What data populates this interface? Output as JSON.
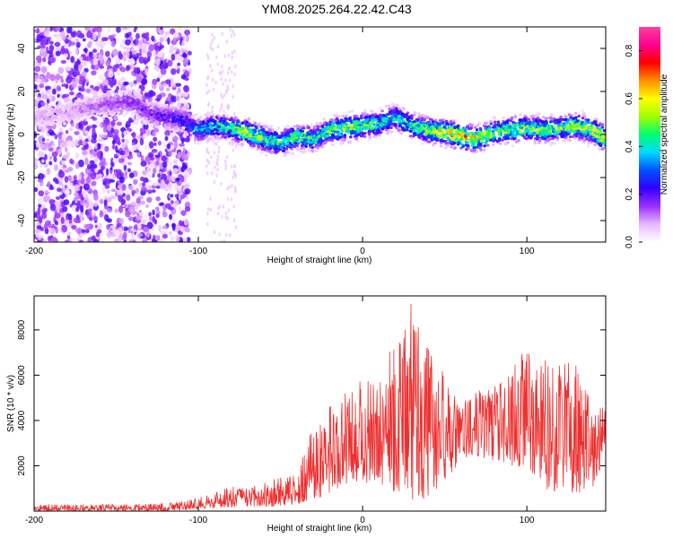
{
  "title": "YM08.2025.264.22.42.C43",
  "chart_data": [
    {
      "type": "heatmap",
      "name": "spectrogram",
      "xlabel": "Height of straight line (km)",
      "ylabel": "Frequency (Hz)",
      "xlim": [
        -200,
        148
      ],
      "ylim": [
        -50,
        50
      ],
      "xticks": [
        -200,
        -100,
        0,
        100
      ],
      "yticks": [
        -40,
        -20,
        0,
        20,
        40
      ],
      "colorbar": {
        "label": "Normalized spectral amplitude",
        "range": [
          0,
          0.9
        ],
        "ticks": [
          "0.0",
          "0.2",
          "0.4",
          "0.6",
          "0.8"
        ],
        "colors": [
          "#ffffff",
          "#e8b8ff",
          "#9b30ff",
          "#3300ff",
          "#0050ff",
          "#00d8ff",
          "#00ff70",
          "#a0ff00",
          "#ffff00",
          "#ff9000",
          "#ff0000",
          "#ff0090",
          "#ff40a0"
        ]
      },
      "ridge": {
        "x": [
          -200,
          -180,
          -160,
          -140,
          -130,
          -120,
          -110,
          -105,
          -100,
          -90,
          -80,
          -70,
          -60,
          -50,
          -40,
          -30,
          -20,
          -10,
          0,
          10,
          20,
          30,
          40,
          50,
          60,
          70,
          80,
          90,
          100,
          110,
          120,
          130,
          140,
          148
        ],
        "freq": [
          8,
          10,
          14,
          15,
          10,
          8,
          7,
          4,
          2,
          4,
          3,
          1,
          -2,
          -4,
          -1,
          -2,
          2,
          3,
          4,
          5,
          8,
          4,
          2,
          1,
          -1,
          -2,
          1,
          2,
          3,
          2,
          3,
          4,
          2,
          -2
        ],
        "amp": [
          0.1,
          0.1,
          0.15,
          0.2,
          0.2,
          0.25,
          0.3,
          0.35,
          0.4,
          0.45,
          0.5,
          0.65,
          0.55,
          0.5,
          0.55,
          0.5,
          0.55,
          0.6,
          0.55,
          0.5,
          0.45,
          0.5,
          0.6,
          0.7,
          0.8,
          0.65,
          0.55,
          0.6,
          0.6,
          0.55,
          0.55,
          0.6,
          0.65,
          0.7
        ]
      }
    },
    {
      "type": "line",
      "name": "snr",
      "xlabel": "Height of straight line (km)",
      "ylabel": "SNR (10 * v/v)",
      "xlim": [
        -200,
        148
      ],
      "ylim": [
        0,
        9500
      ],
      "xticks": [
        -200,
        -100,
        0,
        100
      ],
      "yticks": [
        2000,
        4000,
        6000,
        8000
      ],
      "color": "#ee3030",
      "envelope": {
        "x": [
          -200,
          -150,
          -120,
          -100,
          -90,
          -80,
          -70,
          -60,
          -50,
          -40,
          -30,
          -20,
          -10,
          0,
          10,
          20,
          25,
          30,
          35,
          40,
          50,
          60,
          70,
          80,
          90,
          100,
          110,
          120,
          130,
          140,
          148
        ],
        "base": [
          0,
          0,
          0,
          100,
          150,
          150,
          200,
          200,
          200,
          300,
          400,
          800,
          1200,
          1300,
          1000,
          800,
          600,
          500,
          400,
          600,
          1200,
          2300,
          2400,
          2200,
          2000,
          1800,
          1000,
          800,
          600,
          1000,
          2500
        ],
        "top": [
          300,
          300,
          350,
          600,
          900,
          1100,
          1000,
          1300,
          1500,
          1800,
          3800,
          5000,
          5300,
          5800,
          6300,
          7500,
          8600,
          9300,
          8200,
          7200,
          6000,
          4800,
          5300,
          5700,
          6300,
          7200,
          6800,
          6600,
          6500,
          5200,
          4800
        ]
      }
    }
  ]
}
